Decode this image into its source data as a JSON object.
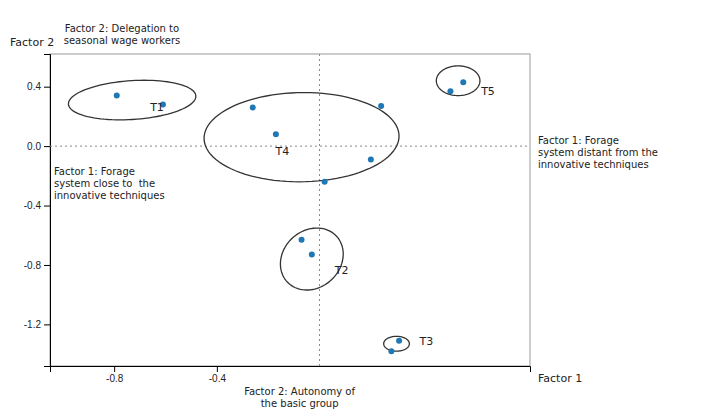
{
  "chart_data": {
    "type": "scatter",
    "xlabel": "Factor 1",
    "ylabel": "Factor 2",
    "xlim": [
      -1.05,
      0.82
    ],
    "ylim": [
      -1.48,
      0.62
    ],
    "xticks": [
      -0.8,
      -0.4
    ],
    "yticks": [
      -1.2,
      -0.8,
      -0.4,
      {
        "value": 0.0,
        "label": "0.0"
      },
      0.4
    ],
    "hlines": [
      0.0
    ],
    "vlines": [
      0.0
    ],
    "x": [
      -0.79,
      -0.61,
      -0.26,
      0.24,
      -0.17,
      0.2,
      0.02,
      -0.07,
      -0.03,
      0.31,
      0.28,
      0.51,
      0.56
    ],
    "y": [
      0.34,
      0.28,
      0.26,
      0.27,
      0.08,
      -0.09,
      -0.24,
      -0.63,
      -0.73,
      -1.31,
      -1.38,
      0.37,
      0.43
    ],
    "ellipses": [
      {
        "cx": -0.73,
        "cy": 0.31,
        "width": 0.5,
        "height": 0.26,
        "angle": 8,
        "label": "T1"
      },
      {
        "cx": -0.03,
        "cy": -0.76,
        "width": 0.24,
        "height": 0.42,
        "angle": -8,
        "label": "T2"
      },
      {
        "cx": 0.3,
        "cy": -1.33,
        "width": 0.1,
        "height": 0.1,
        "angle": 0,
        "label": "T3"
      },
      {
        "cx": -0.07,
        "cy": 0.06,
        "width": 0.76,
        "height": 0.6,
        "angle": 3,
        "label": "T4"
      },
      {
        "cx": 0.54,
        "cy": 0.44,
        "width": 0.17,
        "height": 0.2,
        "angle": 0,
        "label": "T5"
      }
    ],
    "annotations": [
      "Factor 2: Delegation to\nseasonal wage workers",
      "Factor 1: Forage\nsystem close to  the\ninnovative techniques",
      "Factor 1: Forage\nsystem distant from the\ninnovative techniques",
      "Factor 2: Autonomy of\nthe basic group"
    ]
  }
}
